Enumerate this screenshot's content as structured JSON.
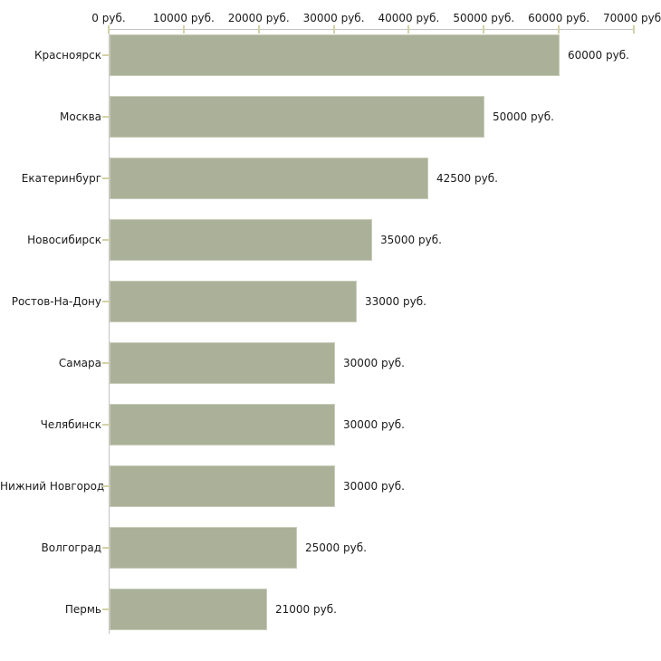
{
  "chart": {
    "colors": {
      "bar_fill": "#abb199",
      "bar_border": "#c8ccba",
      "axis_line": "#c4c4c4",
      "tick_mark": "#d4d1a6",
      "text": "#1a1a1a",
      "background": "#ffffff"
    },
    "axis": {
      "tick_labels": [
        "0 руб.",
        "10000 руб.",
        "20000 руб.",
        "30000 руб.",
        "40000 руб.",
        "50000 руб.",
        "60000 руб.",
        "70000 руб."
      ],
      "tick_values": [
        0,
        10000,
        20000,
        30000,
        40000,
        50000,
        60000,
        70000
      ]
    }
  },
  "chart_data": {
    "type": "bar",
    "orientation": "horizontal",
    "title": "",
    "xlabel": "",
    "ylabel": "",
    "xlim": [
      0,
      70000
    ],
    "grid": false,
    "legend": null,
    "unit_suffix": " руб.",
    "categories": [
      "Красноярск",
      "Москва",
      "Екатеринбург",
      "Новосибирск",
      "Ростов-На-Дону",
      "Самара",
      "Челябинск",
      "Нижний Новгород",
      "Волгоград",
      "Пермь"
    ],
    "values": [
      60000,
      50000,
      42500,
      35000,
      33000,
      30000,
      30000,
      30000,
      25000,
      21000
    ],
    "value_labels": [
      "60000 руб.",
      "50000 руб.",
      "42500 руб.",
      "35000 руб.",
      "33000 руб.",
      "30000 руб.",
      "30000 руб.",
      "30000 руб.",
      "25000 руб.",
      "21000 руб."
    ]
  }
}
